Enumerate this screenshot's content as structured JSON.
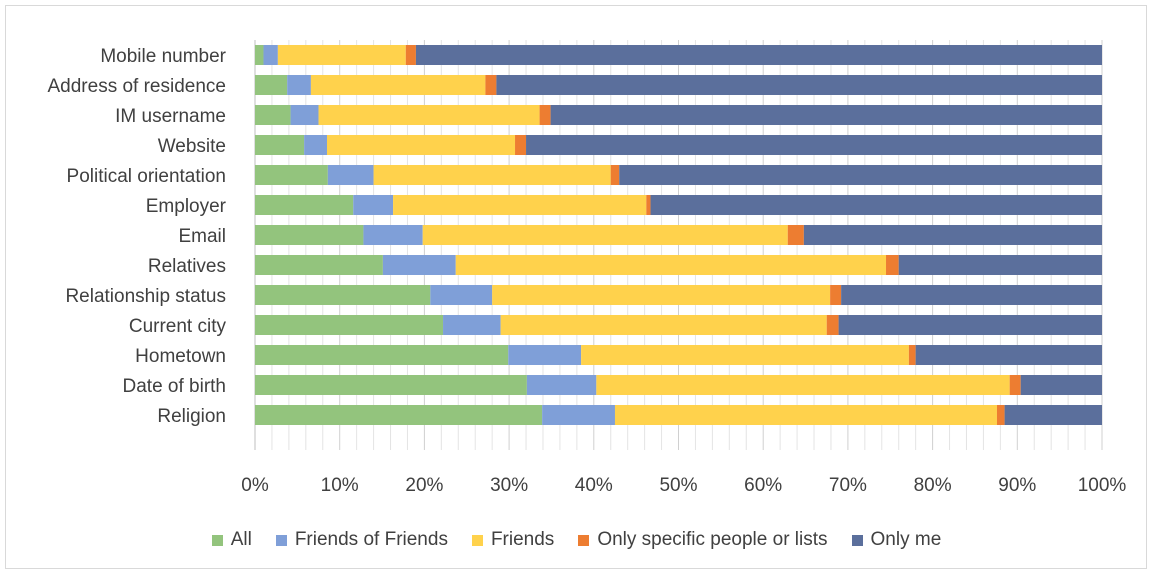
{
  "chart_data": {
    "type": "bar",
    "orientation": "horizontal",
    "stacked": "percent",
    "title": "",
    "xlabel": "",
    "ylabel": "",
    "xlim": [
      0,
      100
    ],
    "x_ticks": [
      "0%",
      "10%",
      "20%",
      "30%",
      "40%",
      "50%",
      "60%",
      "70%",
      "80%",
      "90%",
      "100%"
    ],
    "grid": "vertical",
    "legend_position": "bottom",
    "categories": [
      "Mobile number",
      "Address of residence",
      "IM username",
      "Website",
      "Political orientation",
      "Employer",
      "Email",
      "Relatives",
      "Relationship status",
      "Current city",
      "Hometown",
      "Date of birth",
      "Religion"
    ],
    "series": [
      {
        "name": "All",
        "color": "#93c47d",
        "values": [
          1.0,
          3.8,
          4.2,
          5.8,
          8.6,
          11.6,
          12.8,
          15.1,
          20.7,
          22.2,
          29.9,
          32.1,
          33.9
        ]
      },
      {
        "name": "Friends of Friends",
        "color": "#7f9fd8",
        "values": [
          1.7,
          2.8,
          3.3,
          2.7,
          5.4,
          4.7,
          7.0,
          8.6,
          7.3,
          6.8,
          8.6,
          8.2,
          8.6
        ]
      },
      {
        "name": "Friends",
        "color": "#ffd24c",
        "values": [
          15.1,
          20.6,
          26.1,
          22.2,
          28.0,
          29.9,
          43.1,
          50.8,
          39.9,
          38.5,
          38.7,
          48.8,
          45.1
        ]
      },
      {
        "name": "Only specific people or lists",
        "color": "#ed7d31",
        "values": [
          1.2,
          1.3,
          1.3,
          1.3,
          1.0,
          0.5,
          1.9,
          1.5,
          1.3,
          1.4,
          0.8,
          1.3,
          0.9
        ]
      },
      {
        "name": "Only me",
        "color": "#5b6f9c",
        "values": [
          81.0,
          71.5,
          65.1,
          68.0,
          57.0,
          53.3,
          35.2,
          24.0,
          30.8,
          31.1,
          22.0,
          9.6,
          11.5
        ]
      }
    ]
  }
}
